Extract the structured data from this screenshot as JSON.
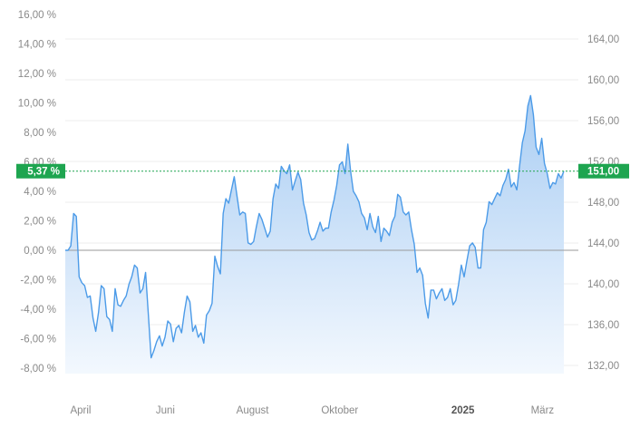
{
  "chart_data": {
    "type": "area",
    "left_axis": {
      "ticks": [
        "16,00 %",
        "14,00 %",
        "12,00 %",
        "10,00 %",
        "8,00 %",
        "6,00 %",
        "4,00 %",
        "2,00 %",
        "0,00 %",
        "-2,00 %",
        "-4,00 %",
        "-6,00 %",
        "-8,00 %"
      ],
      "tick_values": [
        16,
        14,
        12,
        10,
        8,
        6,
        4,
        2,
        0,
        -2,
        -4,
        -6,
        -8
      ]
    },
    "right_axis": {
      "ticks": [
        "164,00",
        "160,00",
        "156,00",
        "152,00",
        "148,00",
        "144,00",
        "140,00",
        "136,00",
        "132,00"
      ],
      "tick_values": [
        164,
        160,
        156,
        152,
        148,
        144,
        140,
        136,
        132
      ]
    },
    "x_axis": {
      "labels": [
        {
          "text": "April",
          "bold": false,
          "t": 0.03
        },
        {
          "text": "Juni",
          "bold": false,
          "t": 0.195
        },
        {
          "text": "August",
          "bold": false,
          "t": 0.365
        },
        {
          "text": "Oktober",
          "bold": false,
          "t": 0.535
        },
        {
          "text": "2025",
          "bold": true,
          "t": 0.775
        },
        {
          "text": "März",
          "bold": false,
          "t": 0.93
        }
      ]
    },
    "baseline_pct": 0,
    "current": {
      "pct_label": "5,37 %",
      "price_label": "151,00",
      "pct": 5.37
    },
    "series": [
      {
        "values_pct": [
          0,
          0,
          0.3,
          2.5,
          2.3,
          -1.8,
          -2.2,
          -2.4,
          -3.2,
          -3.1,
          -4.6,
          -5.5,
          -4.2,
          -2.4,
          -2.6,
          -4.5,
          -4.7,
          -5.5,
          -2.6,
          -3.7,
          -3.8,
          -3.4,
          -3.1,
          -2.3,
          -1.8,
          -1,
          -1.2,
          -2.9,
          -2.6,
          -1.5,
          -4.4,
          -7.3,
          -6.8,
          -6.2,
          -5.8,
          -6.5,
          -5.9,
          -4.8,
          -5,
          -6.2,
          -5.3,
          -5.1,
          -5.6,
          -4.2,
          -3.1,
          -3.5,
          -5.5,
          -5.1,
          -5.9,
          -5.6,
          -6.3,
          -4.4,
          -4.1,
          -3.6,
          -0.4,
          -1.1,
          -1.6,
          2.5,
          3.5,
          3.2,
          4.1,
          5,
          3.7,
          2.4,
          2.6,
          2.5,
          0.5,
          0.4,
          0.6,
          1.6,
          2.5,
          2.1,
          1.5,
          0.9,
          1.3,
          3.5,
          4.5,
          4.2,
          5.7,
          5.4,
          5.2,
          5.8,
          4.1,
          4.7,
          5.3,
          4.8,
          3.2,
          2.4,
          1.2,
          0.7,
          0.8,
          1.3,
          1.9,
          1.3,
          1.5,
          1.5,
          2.6,
          3.4,
          4.4,
          5.8,
          6,
          5.2,
          7.2,
          5.4,
          4,
          3.7,
          3.3,
          2.5,
          2.2,
          1.4,
          2.5,
          1.6,
          1.2,
          2.3,
          0.6,
          1.5,
          1.3,
          1,
          1.9,
          2.3,
          3.8,
          3.6,
          2.6,
          2.4,
          2.6,
          1.4,
          0.4,
          -1.5,
          -1.2,
          -1.7,
          -3.6,
          -4.6,
          -2.7,
          -2.7,
          -3.3,
          -2.9,
          -2.6,
          -3.4,
          -3.2,
          -2.6,
          -3.7,
          -3.4,
          -2.3,
          -1,
          -1.8,
          -0.7,
          0.3,
          0.5,
          0.2,
          -1.2,
          -1.2,
          1.4,
          1.9,
          3.3,
          3.1,
          3.5,
          3.9,
          3.7,
          4.4,
          4.8,
          5.5,
          4.3,
          4.6,
          4.1,
          5.7,
          7.3,
          8.1,
          9.8,
          10.5,
          9.2,
          7,
          6.5,
          7.6,
          5.9,
          5.2,
          4.2,
          4.6,
          4.5,
          5.2,
          4.9,
          5.37
        ]
      }
    ]
  },
  "colors": {
    "line": "#4c9be8",
    "fill_top": "#a9cdf3",
    "fill_bottom": "#f3f8fe",
    "grid": "#ececec",
    "baseline": "#9a9a9a",
    "badge": "#1ea550",
    "dotted": "#1ea550"
  }
}
